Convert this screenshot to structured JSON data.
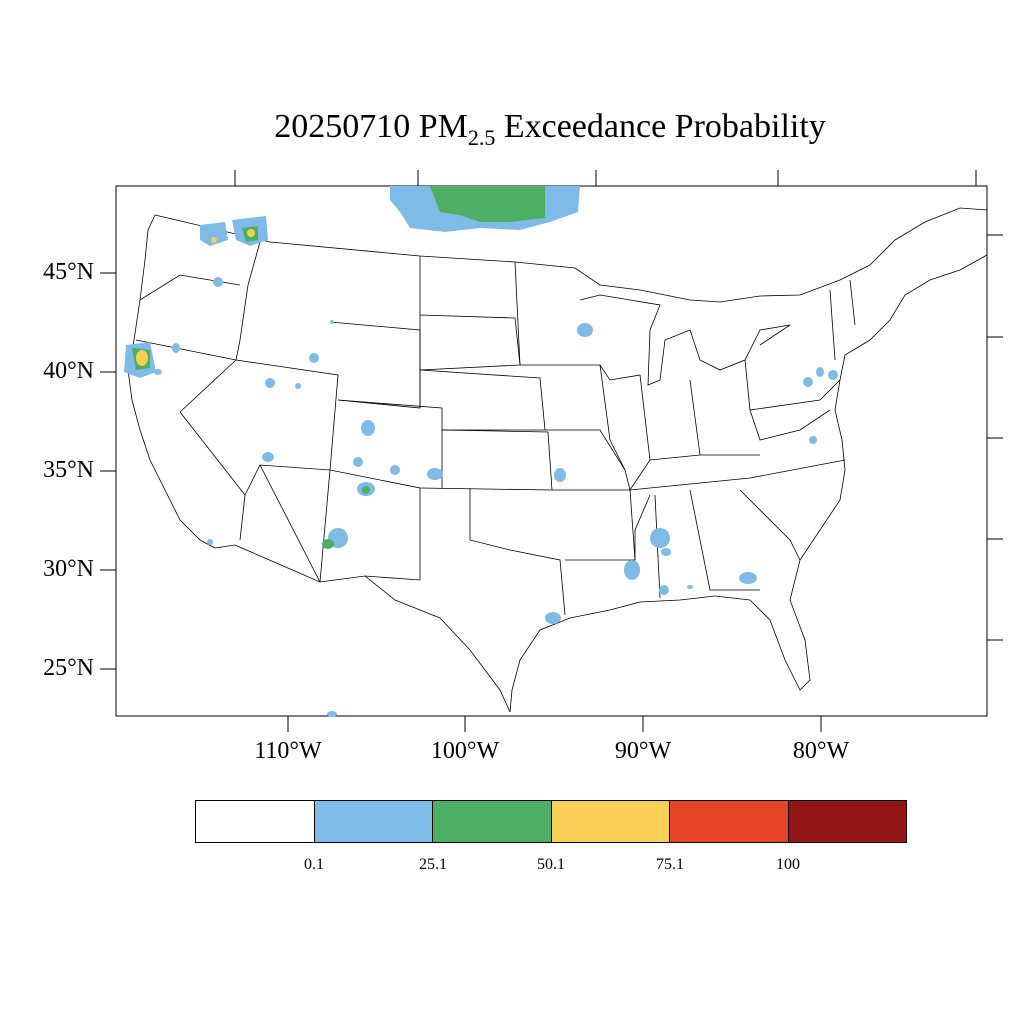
{
  "title": {
    "text_before_sub": "20250710 PM",
    "subscript": "2.5",
    "text_after_sub": " Exceedance Probability"
  },
  "axes": {
    "lat_labels": [
      "45°N",
      "40°N",
      "35°N",
      "30°N",
      "25°N"
    ],
    "lon_labels": [
      "110°W",
      "100°W",
      "90°W",
      "80°W"
    ]
  },
  "legend": {
    "colors": [
      "#ffffff",
      "#7fbbe6",
      "#4caf63",
      "#f9cf55",
      "#e54427",
      "#931619"
    ],
    "labels": [
      "0.1",
      "25.1",
      "50.1",
      "75.1",
      "100"
    ]
  },
  "map_colors": {
    "blue": "#7fbbe6",
    "green": "#4caf63",
    "yellow": "#f9cf55"
  }
}
